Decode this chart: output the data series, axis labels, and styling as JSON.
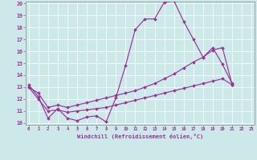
{
  "x": [
    0,
    1,
    2,
    3,
    4,
    5,
    6,
    7,
    8,
    9,
    10,
    11,
    12,
    13,
    14,
    15,
    16,
    17,
    18,
    19,
    20,
    21,
    22,
    23
  ],
  "line1": [
    13.2,
    12.2,
    10.4,
    11.2,
    10.4,
    10.2,
    10.5,
    10.6,
    10.1,
    12.1,
    14.8,
    17.8,
    18.7,
    18.7,
    20.1,
    20.2,
    18.5,
    17.0,
    15.5,
    16.3,
    14.9,
    13.3,
    null,
    null
  ],
  "line2": [
    13.0,
    12.5,
    11.3,
    11.5,
    11.3,
    11.5,
    11.7,
    11.9,
    12.1,
    12.3,
    12.5,
    12.7,
    13.0,
    13.3,
    13.7,
    14.1,
    14.6,
    15.1,
    15.5,
    16.1,
    16.3,
    13.2,
    null,
    null
  ],
  "line3": [
    13.0,
    12.0,
    11.0,
    11.1,
    10.9,
    11.0,
    11.1,
    11.2,
    11.3,
    11.5,
    11.7,
    11.9,
    12.1,
    12.3,
    12.5,
    12.7,
    12.9,
    13.1,
    13.3,
    13.5,
    13.7,
    13.2,
    null,
    null
  ],
  "color": "#993399",
  "bg_color": "#cce8e8",
  "xlabel": "Windchill (Refroidissement éolien,°C)",
  "ylim": [
    10,
    20
  ],
  "xlim": [
    -0.3,
    23.3
  ],
  "yticks": [
    10,
    11,
    12,
    13,
    14,
    15,
    16,
    17,
    18,
    19,
    20
  ],
  "xticks": [
    0,
    1,
    2,
    3,
    4,
    5,
    6,
    7,
    8,
    9,
    10,
    11,
    12,
    13,
    14,
    15,
    16,
    17,
    18,
    19,
    20,
    21,
    22,
    23
  ],
  "marker_size": 2.3,
  "line_width": 0.85
}
